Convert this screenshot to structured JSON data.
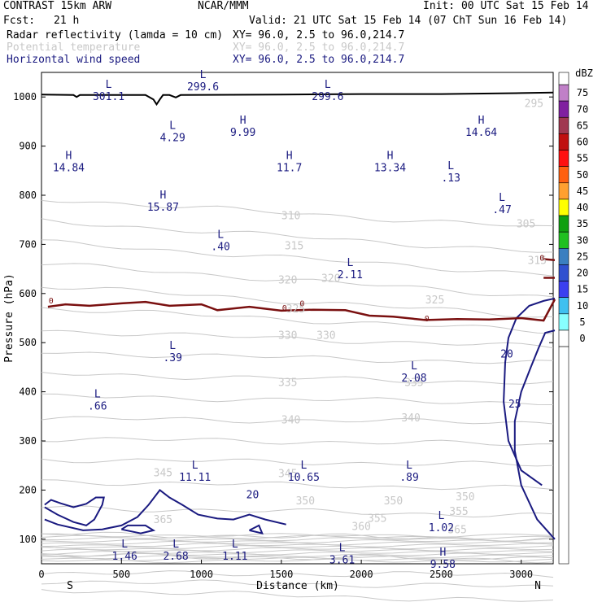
{
  "header": {
    "model": "CONTRAST 15km ARW",
    "center": "NCAR/MMM",
    "init": "Init: 00 UTC Sat 15 Feb 14",
    "fcst_label": "Fcst:",
    "fcst_value": "21 h",
    "valid": "Valid: 21 UTC Sat 15 Feb 14 (07 ChT Sun 16 Feb 14)"
  },
  "fields": [
    {
      "name": "Radar reflectivity (lamda = 10 cm)",
      "xy": "XY=  96.0,  2.5 to  96.0,214.7",
      "color": "#000000"
    },
    {
      "name": "Potential temperature",
      "xy": "XY=  96.0,  2.5 to  96.0,214.7",
      "color": "#c8c8c8"
    },
    {
      "name": "Horizontal wind speed",
      "xy": "XY=  96.0,  2.5 to  96.0,214.7",
      "color": "#1a1a80"
    }
  ],
  "chart_data": {
    "type": "cross-section",
    "xlabel": "Distance (km)",
    "ylabel": "Pressure (hPa)",
    "xlim": [
      0,
      3200
    ],
    "ylim": [
      1050,
      50
    ],
    "x_ticks": [
      0,
      500,
      1000,
      1500,
      2000,
      2500,
      3000
    ],
    "y_ticks": [
      100,
      200,
      300,
      400,
      500,
      600,
      700,
      800,
      900,
      1000
    ],
    "left_end_label": "S",
    "right_end_label": "N",
    "theta_labels": [
      {
        "x": 760,
        "p": 133,
        "text": "365"
      },
      {
        "x": 1650,
        "p": 171,
        "text": "350"
      },
      {
        "x": 2200,
        "p": 171,
        "text": "350"
      },
      {
        "x": 2650,
        "p": 179,
        "text": "350"
      },
      {
        "x": 2000,
        "p": 119,
        "text": "360"
      },
      {
        "x": 2100,
        "p": 135,
        "text": "355"
      },
      {
        "x": 2610,
        "p": 149,
        "text": "355"
      },
      {
        "x": 2600,
        "p": 112,
        "text": "365"
      },
      {
        "x": 760,
        "p": 228,
        "text": "345"
      },
      {
        "x": 1540,
        "p": 226,
        "text": "345"
      },
      {
        "x": 1560,
        "p": 336,
        "text": "340"
      },
      {
        "x": 2310,
        "p": 340,
        "text": "340"
      },
      {
        "x": 1540,
        "p": 412,
        "text": "335"
      },
      {
        "x": 2330,
        "p": 412,
        "text": "335"
      },
      {
        "x": 1540,
        "p": 508,
        "text": "330"
      },
      {
        "x": 1780,
        "p": 508,
        "text": "330"
      },
      {
        "x": 1590,
        "p": 562,
        "text": "325"
      },
      {
        "x": 2460,
        "p": 580,
        "text": "325"
      },
      {
        "x": 1540,
        "p": 620,
        "text": "320"
      },
      {
        "x": 1810,
        "p": 624,
        "text": "320"
      },
      {
        "x": 1580,
        "p": 690,
        "text": "315"
      },
      {
        "x": 3100,
        "p": 660,
        "text": "315"
      },
      {
        "x": 1560,
        "p": 751,
        "text": "310"
      },
      {
        "x": 3030,
        "p": 735,
        "text": "305"
      },
      {
        "x": 3080,
        "p": 980,
        "text": "295"
      }
    ],
    "wind_labels": [
      {
        "x": 1320,
        "p": 183,
        "text": "20"
      },
      {
        "x": 2960,
        "p": 368,
        "text": "25"
      },
      {
        "x": 2910,
        "p": 470,
        "text": "20"
      }
    ],
    "zero_labels": [
      {
        "x": 60,
        "p": 580,
        "text": "0"
      },
      {
        "x": 1520,
        "p": 565,
        "text": "0"
      },
      {
        "x": 1630,
        "p": 574,
        "text": "0"
      },
      {
        "x": 2410,
        "p": 543,
        "text": "0"
      },
      {
        "x": 3130,
        "p": 667,
        "text": "0"
      }
    ],
    "extrema": [
      {
        "x": 520,
        "p": 80,
        "kind": "L",
        "value": "1.46"
      },
      {
        "x": 840,
        "p": 80,
        "kind": "L",
        "value": "2.68"
      },
      {
        "x": 1210,
        "p": 80,
        "kind": "L",
        "value": "1.11"
      },
      {
        "x": 1880,
        "p": 72,
        "kind": "L",
        "value": "3.61"
      },
      {
        "x": 2510,
        "p": 63,
        "kind": "H",
        "value": "9.58"
      },
      {
        "x": 2500,
        "p": 138,
        "kind": "L",
        "value": "1.02"
      },
      {
        "x": 960,
        "p": 240,
        "kind": "L",
        "value": "11.11"
      },
      {
        "x": 1640,
        "p": 240,
        "kind": "L",
        "value": "10.65"
      },
      {
        "x": 2300,
        "p": 240,
        "kind": "L",
        "value": ".89"
      },
      {
        "x": 350,
        "p": 385,
        "kind": "L",
        "value": ".66"
      },
      {
        "x": 2330,
        "p": 442,
        "kind": "L",
        "value": "2.08"
      },
      {
        "x": 820,
        "p": 484,
        "kind": "L",
        "value": ".39"
      },
      {
        "x": 1930,
        "p": 653,
        "kind": "L",
        "value": "2.11"
      },
      {
        "x": 1120,
        "p": 710,
        "kind": "L",
        "value": ".40"
      },
      {
        "x": 760,
        "p": 790,
        "kind": "H",
        "value": "15.87"
      },
      {
        "x": 2880,
        "p": 785,
        "kind": "L",
        "value": ".47"
      },
      {
        "x": 2560,
        "p": 850,
        "kind": "L",
        "value": ".13"
      },
      {
        "x": 170,
        "p": 870,
        "kind": "H",
        "value": "14.84"
      },
      {
        "x": 1550,
        "p": 870,
        "kind": "H",
        "value": "11.7"
      },
      {
        "x": 2180,
        "p": 870,
        "kind": "H",
        "value": "13.34"
      },
      {
        "x": 2750,
        "p": 942,
        "kind": "H",
        "value": "14.64"
      },
      {
        "x": 820,
        "p": 932,
        "kind": "L",
        "value": "4.29"
      },
      {
        "x": 1260,
        "p": 942,
        "kind": "H",
        "value": "9.99"
      },
      {
        "x": 420,
        "p": 1015,
        "kind": "L",
        "value": "301.1"
      },
      {
        "x": 1010,
        "p": 1035,
        "kind": "L",
        "value": "299.6"
      },
      {
        "x": 1790,
        "p": 1015,
        "kind": "L",
        "value": "299.6"
      }
    ],
    "reflectivity_scale": {
      "unit": "dBZ",
      "levels": [
        0,
        5,
        10,
        15,
        20,
        25,
        30,
        35,
        40,
        45,
        50,
        55,
        60,
        65,
        70,
        75
      ],
      "colors": [
        "#ffffff",
        "#88ffff",
        "#3fc0f0",
        "#3b3ff0",
        "#3050d0",
        "#3b7fc0",
        "#20c020",
        "#10a010",
        "#ffff00",
        "#ffa030",
        "#ff6010",
        "#ff1010",
        "#c01010",
        "#a03850",
        "#8020a0",
        "#c080c8"
      ]
    },
    "colors": {
      "theta": "#c8c8c8",
      "wind": "#1a1a80",
      "zero_line": "#7a1010",
      "terrain": "#000000",
      "labels": "#1a1a80"
    }
  }
}
